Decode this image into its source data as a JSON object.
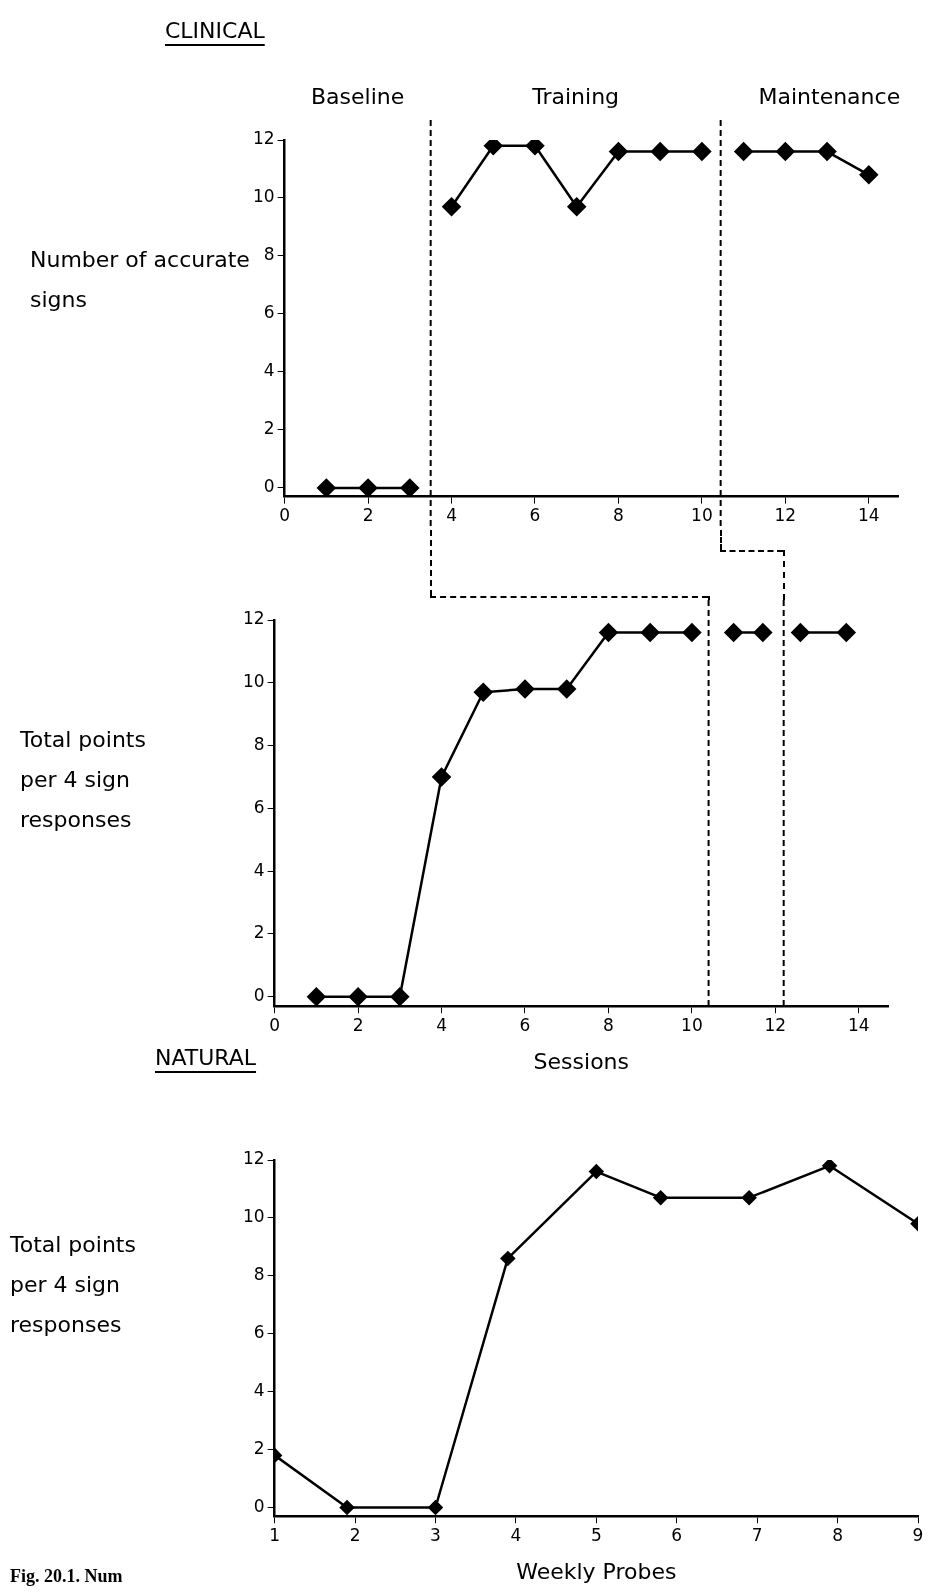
{
  "chart_data": [
    {
      "type": "line",
      "title": "CLINICAL",
      "ylabel": "Number of accurate signs",
      "annotations": [
        "Baseline",
        "Training",
        "Maintenance"
      ],
      "series": [
        {
          "color": "#000000",
          "x": [
            1,
            2,
            3
          ],
          "values": [
            0,
            0,
            0
          ]
        },
        {
          "color": "#000000",
          "x": [
            4,
            5,
            6,
            7,
            8,
            9,
            10
          ],
          "values": [
            9.7,
            11.8,
            11.8,
            9.7,
            11.6,
            11.6,
            11.6
          ]
        },
        {
          "color": "#000000",
          "x": [
            11,
            12,
            13,
            14
          ],
          "values": [
            11.6,
            11.6,
            11.6,
            10.8
          ]
        }
      ],
      "xlim": [
        0,
        14.7
      ],
      "xticks": [
        0,
        2,
        4,
        6,
        8,
        10,
        12,
        14
      ],
      "ylim": [
        -0.3,
        12
      ],
      "yticks": [
        0,
        2,
        4,
        6,
        8,
        10,
        12
      ],
      "ref_lines": [
        {
          "axis": "x",
          "value": 3.5,
          "color": "#000000",
          "line_style": "dashed"
        },
        {
          "axis": "x",
          "value": 10.45,
          "color": "#000000",
          "line_style": "dashed"
        }
      ],
      "marker": "diamond",
      "line_style": "solid",
      "grid": false,
      "legend": false
    },
    {
      "type": "line",
      "ylabel": "Total points per 4 sign responses",
      "xlabel": "Sessions",
      "series": [
        {
          "color": "#000000",
          "x": [
            1,
            2,
            3,
            4,
            5,
            6,
            7,
            8,
            9,
            10
          ],
          "values": [
            0,
            0,
            0,
            7,
            9.7,
            9.8,
            9.8,
            11.6,
            11.6,
            11.6
          ]
        },
        {
          "color": "#000000",
          "x": [
            11,
            11.7
          ],
          "values": [
            11.6,
            11.6
          ]
        },
        {
          "color": "#000000",
          "x": [
            12.6,
            13.7
          ],
          "values": [
            11.6,
            11.6
          ]
        }
      ],
      "xlim": [
        0,
        14.7
      ],
      "xticks": [
        0,
        2,
        4,
        6,
        8,
        10,
        12,
        14
      ],
      "ylim": [
        -0.3,
        12
      ],
      "yticks": [
        0,
        2,
        4,
        6,
        8,
        10,
        12
      ],
      "ref_lines": [
        {
          "axis": "x",
          "value": 10.4,
          "color": "#000000",
          "line_style": "dashed"
        },
        {
          "axis": "x",
          "value": 12.2,
          "color": "#000000",
          "line_style": "dashed"
        }
      ],
      "marker": "diamond",
      "line_style": "solid",
      "grid": false,
      "legend": false
    },
    {
      "type": "line",
      "title": "NATURAL",
      "ylabel": "Total points per 4 sign responses",
      "xlabel": "Weekly Probes",
      "annotations": [
        "Fig. 20.1. Num"
      ],
      "series": [
        {
          "color": "#000000",
          "x": [
            1,
            1.9,
            3,
            3.9,
            5,
            5.8,
            6.9,
            7.9,
            9
          ],
          "values": [
            1.8,
            0,
            0,
            8.6,
            11.6,
            10.7,
            10.7,
            11.8,
            9.8
          ]
        }
      ],
      "xlim": [
        1,
        9
      ],
      "xticks": [
        1,
        2,
        3,
        4,
        5,
        6,
        7,
        8,
        9
      ],
      "ylim": [
        -0.3,
        12
      ],
      "yticks": [
        0,
        2,
        4,
        6,
        8,
        10,
        12
      ],
      "marker": "diamond",
      "line_style": "solid",
      "grid": false,
      "legend": false
    }
  ]
}
